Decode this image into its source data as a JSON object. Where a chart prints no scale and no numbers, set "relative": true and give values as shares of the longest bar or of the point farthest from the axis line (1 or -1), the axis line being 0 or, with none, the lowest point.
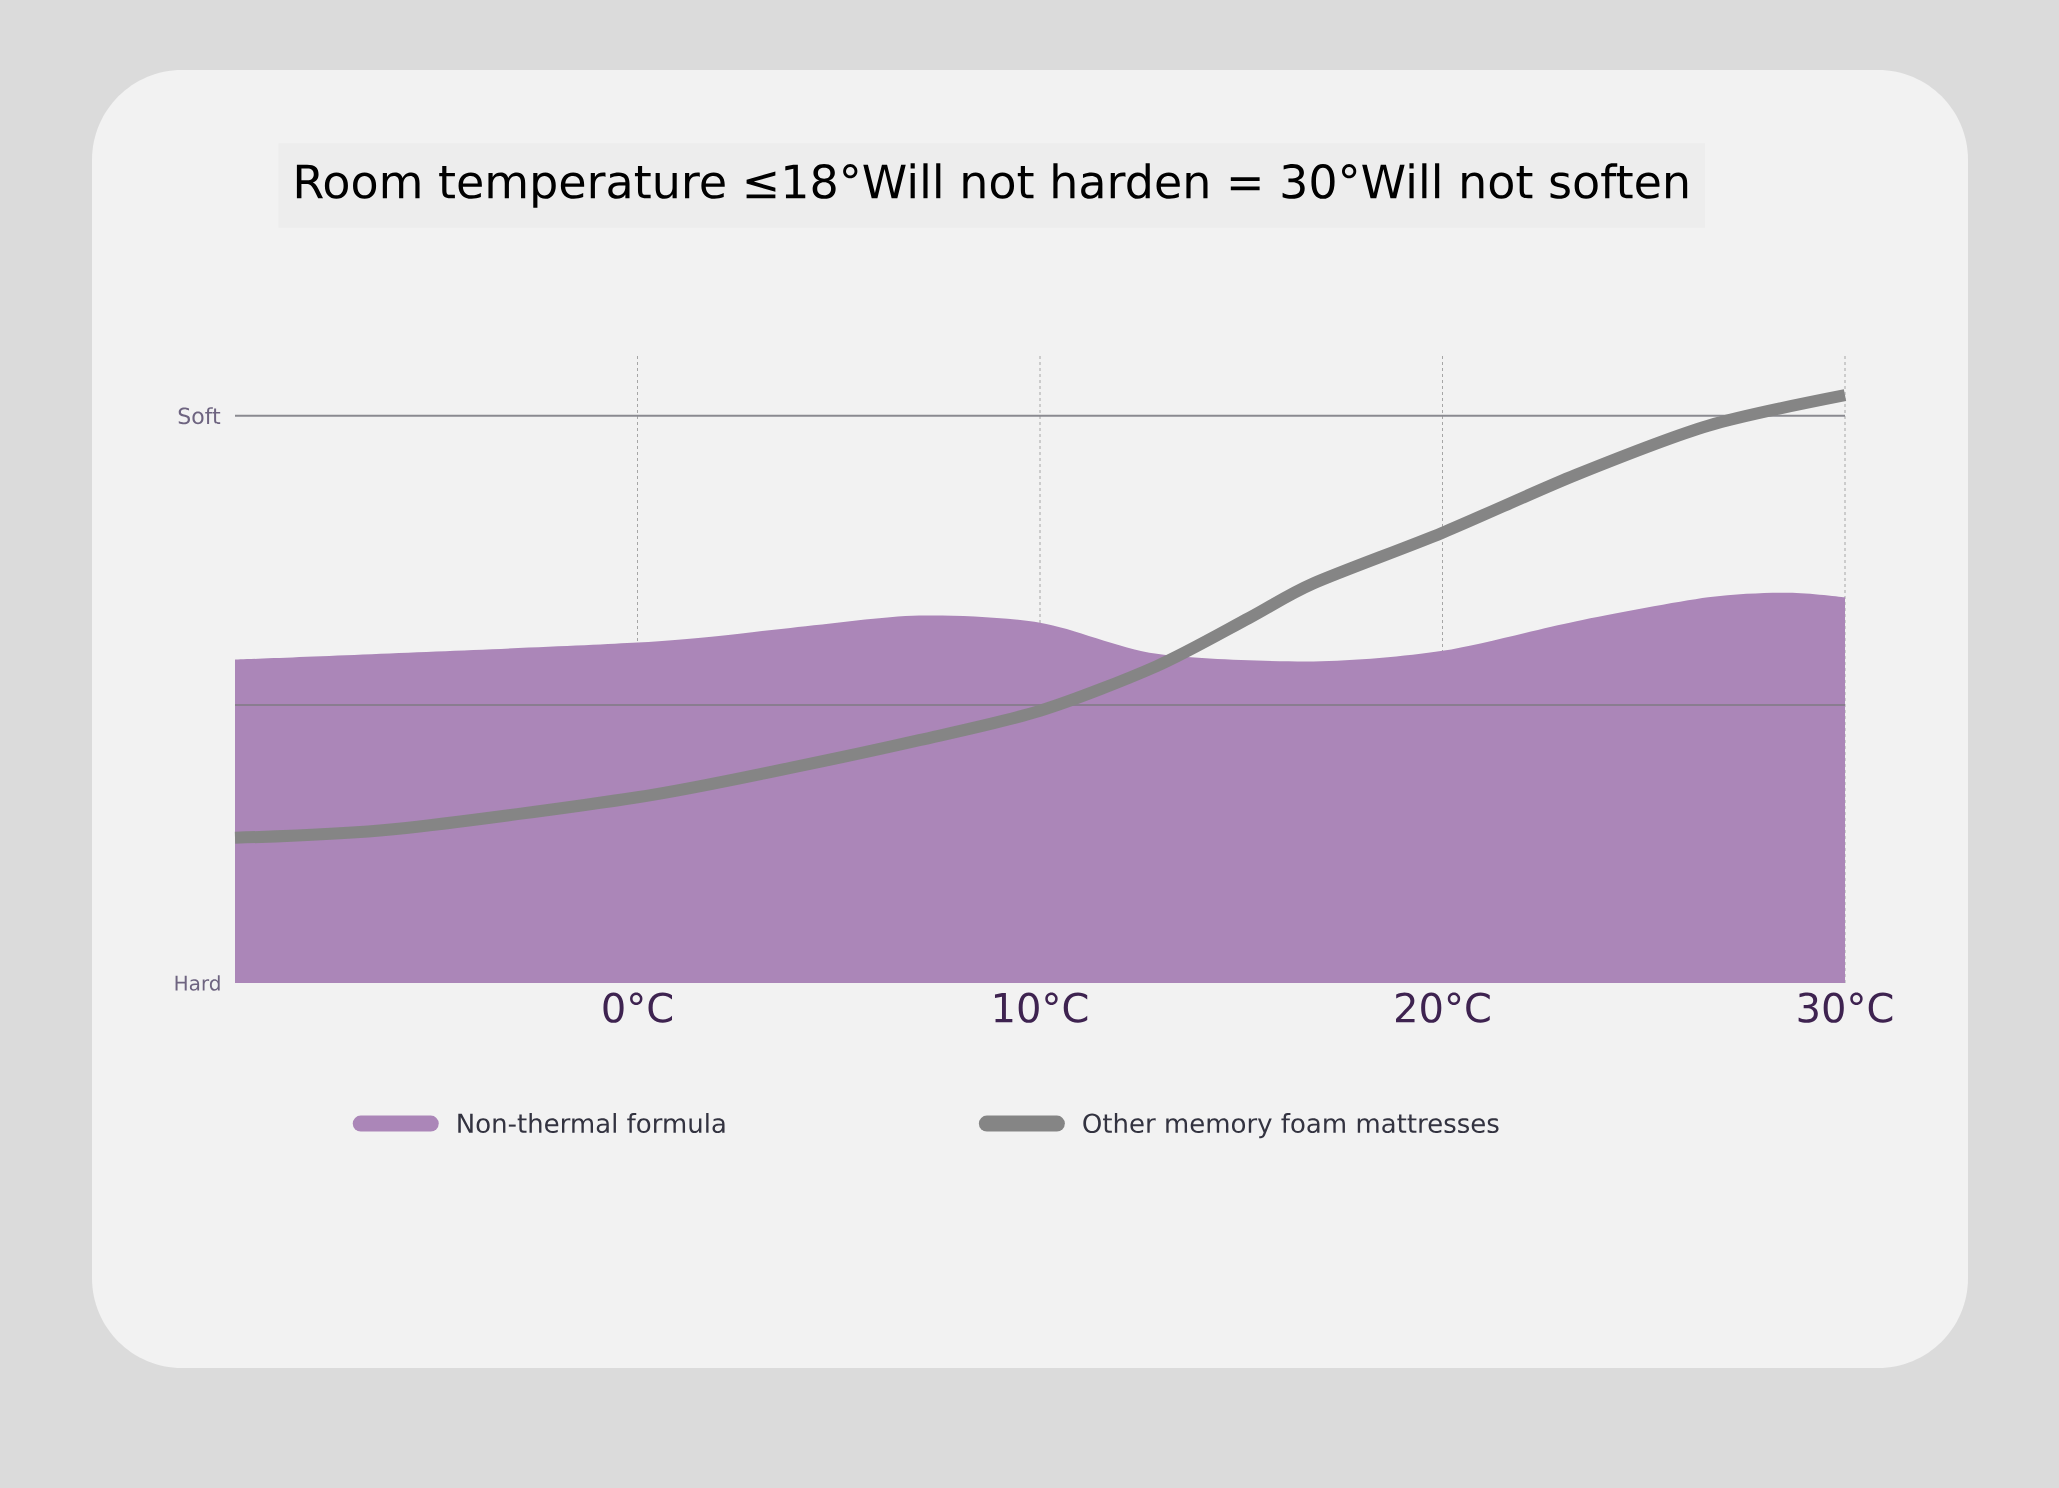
{
  "chart_data": {
    "type": "line",
    "title": "Room temperature ≤18°Will not harden = 30°Will not soften",
    "relative": true,
    "xlim": [
      -10,
      30
    ],
    "xticks": [
      {
        "value": 0,
        "label": "0°C"
      },
      {
        "value": 10,
        "label": "10°C"
      },
      {
        "value": 20,
        "label": "20°C"
      },
      {
        "value": 30,
        "label": "30°C"
      }
    ],
    "grid": "x",
    "legend": "bottom",
    "ref_lines": [
      {
        "axis": "y",
        "value": 0.965,
        "label": "Soft",
        "color": "#8a8a90"
      },
      {
        "axis": "y",
        "value": 0.473,
        "color": "#8a7d90"
      }
    ],
    "annotations": [
      "Hard"
    ],
    "series": [
      {
        "name": "Non-thermal formula",
        "type": "area",
        "color": "#ab86b8",
        "x": [
          -10,
          0,
          3.8,
          7,
          10,
          12.9,
          16.8,
          20,
          23.3,
          26.6,
          28.6,
          30
        ],
        "values": [
          0.55,
          0.579,
          0.604,
          0.625,
          0.613,
          0.56,
          0.547,
          0.565,
          0.615,
          0.656,
          0.664,
          0.656
        ]
      },
      {
        "name": "Other memory foam mattresses",
        "color": "#858585",
        "x": [
          -10,
          -6,
          0,
          3.8,
          7,
          10,
          12.9,
          15.2,
          16.8,
          20,
          23.3,
          26.6,
          30
        ],
        "values": [
          0.247,
          0.262,
          0.316,
          0.366,
          0.413,
          0.463,
          0.539,
          0.621,
          0.68,
          0.766,
          0.864,
          0.948,
          1
        ]
      }
    ]
  }
}
